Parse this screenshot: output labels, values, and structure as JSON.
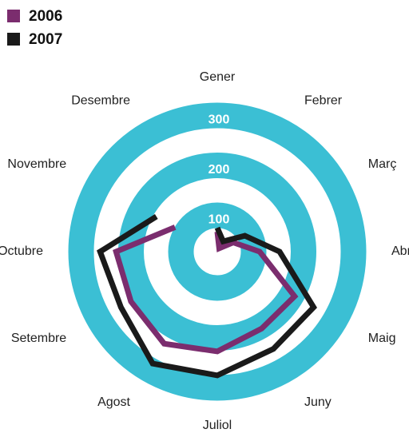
{
  "chart_data": {
    "type": "radar",
    "categories": [
      "Gener",
      "Febrer",
      "Març",
      "Abril",
      "Maig",
      "Juny",
      "Juliol",
      "Agost",
      "Setembre",
      "Octubre",
      "Novembre",
      "Desembre"
    ],
    "series": [
      {
        "name": "2006",
        "color": "#7b2d6e",
        "values": [
          67,
          35,
          64,
          112,
          206,
          205,
          227,
          240,
          227,
          230,
          125,
          null
        ]
      },
      {
        "name": "2007",
        "color": "#1a1a1a",
        "values": [
          75,
          51,
          91,
          152,
          250,
          252,
          275,
          286,
          250,
          262,
          168,
          null
        ]
      }
    ],
    "ticks": [
      100,
      200,
      300
    ],
    "ring_color": "#3bbfd4",
    "legend": "top-left"
  }
}
